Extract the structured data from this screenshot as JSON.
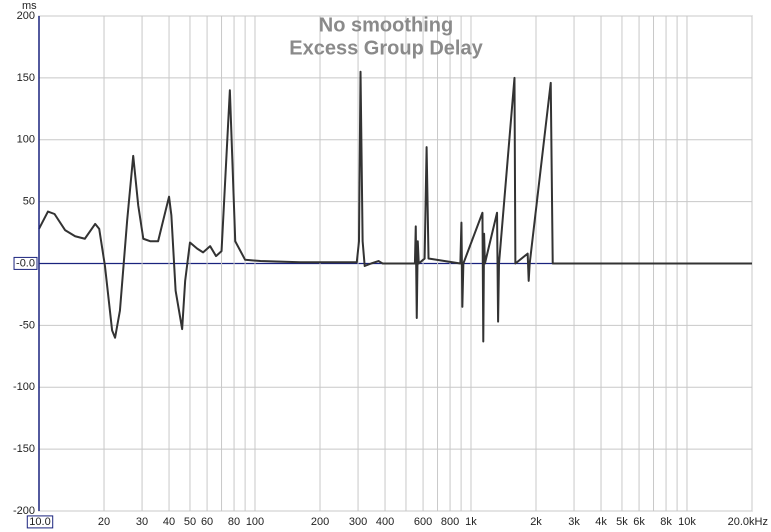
{
  "chart_data": {
    "type": "line",
    "title": "No smoothing",
    "subtitle": "Excess Group Delay",
    "y_unit": "ms",
    "x_log": true,
    "grid": true,
    "xlim": [
      10,
      20000
    ],
    "ylim": [
      -200,
      200
    ],
    "yticks": [
      200,
      150,
      100,
      50,
      {
        "value": 0,
        "label": "-0.0"
      },
      -50,
      -100,
      -150,
      -200
    ],
    "xticks": [
      {
        "value": 10,
        "label": "10.0"
      },
      20,
      30,
      40,
      50,
      60,
      80,
      100,
      200,
      300,
      400,
      600,
      800,
      {
        "value": 1000,
        "label": "1k"
      },
      {
        "value": 2000,
        "label": "2k"
      },
      {
        "value": 3000,
        "label": "3k"
      },
      {
        "value": 4000,
        "label": "4k"
      },
      {
        "value": 5000,
        "label": "5k"
      },
      {
        "value": 6000,
        "label": "6k"
      },
      {
        "value": 8000,
        "label": "8k"
      },
      {
        "value": 10000,
        "label": "10k"
      },
      {
        "value": 20000,
        "label": "20.0kHz"
      }
    ],
    "xminor": [
      70,
      90,
      500,
      700,
      900,
      7000,
      9000
    ],
    "zero_line_color": "#1a237e",
    "series": [
      {
        "name": "Excess Group Delay",
        "color": "#333333",
        "x": [
          10,
          11,
          11.8,
          13.2,
          14.7,
          16.3,
          18.2,
          19,
          20.2,
          21.8,
          22.5,
          23.7,
          25.6,
          27.3,
          28.8,
          30.4,
          32.7,
          35.6,
          37,
          40,
          41,
          42.9,
          46,
          47.5,
          50,
          54,
          57.5,
          62,
          66,
          70,
          76.5,
          81,
          90,
          106,
          162,
          296,
          303,
          308,
          315,
          322,
          345,
          373,
          390,
          550,
          555,
          561,
          567,
          573,
          610,
          623,
          636,
          893,
          903,
          912,
          922,
          1130,
          1140,
          1150,
          1160,
          1320,
          1335,
          1348,
          1590,
          1605,
          1830,
          1850,
          1870,
          2340,
          2390,
          20000
        ],
        "values": [
          28,
          42,
          40,
          27,
          22,
          20,
          32,
          28,
          -2,
          -54,
          -60,
          -38,
          35,
          87,
          47,
          20,
          18,
          18,
          30,
          54,
          39,
          -22,
          -53,
          -14,
          17,
          12,
          9,
          14,
          6,
          10,
          140,
          18,
          3,
          2,
          1,
          1,
          18,
          155,
          18,
          -2,
          0,
          2,
          0,
          0,
          30,
          -44,
          18,
          0,
          4,
          94,
          4,
          0,
          33,
          -35,
          0,
          41,
          -63,
          24,
          0,
          41,
          -47,
          0,
          150,
          0,
          8,
          -14,
          0,
          146,
          0,
          0
        ]
      }
    ]
  }
}
